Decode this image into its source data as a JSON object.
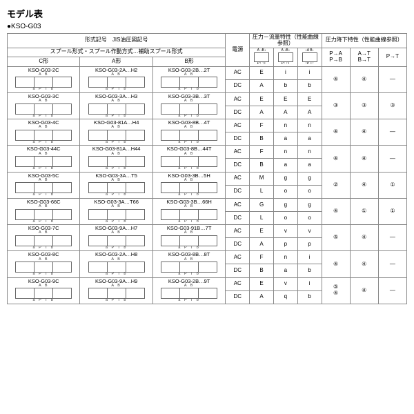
{
  "title": "モデル表",
  "subtitle": "●KSO-G03",
  "header": {
    "model_group": "形式記号　JIS油圧図記号",
    "spool_group": "スプール形式・スプール作動方式…補助スプール形式",
    "c_type": "C形",
    "a_type": "A形",
    "b_type": "B形",
    "power": "電源",
    "pressure_flow": "圧力－流量特性（性能曲線参照）",
    "pressure_drop": "圧力降下特性（性能曲線参照）",
    "pf_col1": "",
    "pf_col2": "",
    "pf_col3": "",
    "pd_col1": "P→A\nP→B",
    "pd_col2": "A→T\nB→T",
    "pd_col3": "P→T"
  },
  "rows": [
    {
      "c": "KSO-G03-2C",
      "a": "KSO-G03-2A…H2",
      "b": "KSO-G03-2B…2T",
      "ac": [
        "E",
        "i",
        "i"
      ],
      "dc": [
        "A",
        "b",
        "b"
      ],
      "pd": [
        "④",
        "④",
        "―"
      ]
    },
    {
      "c": "KSO-G03-3C",
      "a": "KSO-G03-3A…H3",
      "b": "KSO-G03-3B…3T",
      "ac": [
        "E",
        "E",
        "E"
      ],
      "dc": [
        "A",
        "A",
        "A"
      ],
      "pd": [
        "③",
        "③",
        "③"
      ]
    },
    {
      "c": "KSO-G03-4C",
      "a": "KSO-G03-81A…H4",
      "b": "KSO-G03-8B…4T",
      "ac": [
        "F",
        "n",
        "n"
      ],
      "dc": [
        "B",
        "a",
        "a"
      ],
      "pd": [
        "④",
        "④",
        "―"
      ]
    },
    {
      "c": "KSO-G03-44C",
      "a": "KSO-G03-81A…H44",
      "b": "KSO-G03-8B…44T",
      "ac": [
        "F",
        "n",
        "n"
      ],
      "dc": [
        "B",
        "a",
        "a"
      ],
      "pd": [
        "④",
        "④",
        "―"
      ]
    },
    {
      "c": "KSO-G03-5C",
      "a": "KSO-G03-3A…T5",
      "b": "KSO-G03-3B…5H",
      "ac": [
        "M",
        "g",
        "g"
      ],
      "dc": [
        "L",
        "o",
        "o"
      ],
      "pd": [
        "②",
        "④",
        "①"
      ]
    },
    {
      "c": "KSO-G03-66C",
      "a": "KSO-G03-3A…T66",
      "b": "KSO-G03-3B…66H",
      "ac": [
        "G",
        "g",
        "g"
      ],
      "dc": [
        "L",
        "o",
        "o"
      ],
      "pd": [
        "④",
        "①",
        "①"
      ]
    },
    {
      "c": "KSO-G03-7C",
      "a": "KSO-G03-9A…H7",
      "b": "KSO-G03-91B…7T",
      "ac": [
        "E",
        "v",
        "v"
      ],
      "dc": [
        "A",
        "p",
        "p"
      ],
      "pd": [
        "⑤",
        "④",
        "―"
      ]
    },
    {
      "c": "KSO-G03-8C",
      "a": "KSO-G03-2A…H8",
      "b": "KSO-G03-8B…8T",
      "ac": [
        "F",
        "n",
        "i"
      ],
      "dc": [
        "B",
        "a",
        "b"
      ],
      "pd": [
        "④",
        "④",
        "―"
      ]
    },
    {
      "c": "KSO-G03-9C",
      "a": "KSO-G03-9A…H9",
      "b": "KSO-G03-2B…9T",
      "ac": [
        "E",
        "v",
        "i"
      ],
      "dc": [
        "A",
        "q",
        "b"
      ],
      "pd": [
        "⑤\n④",
        "④",
        "―"
      ]
    }
  ]
}
